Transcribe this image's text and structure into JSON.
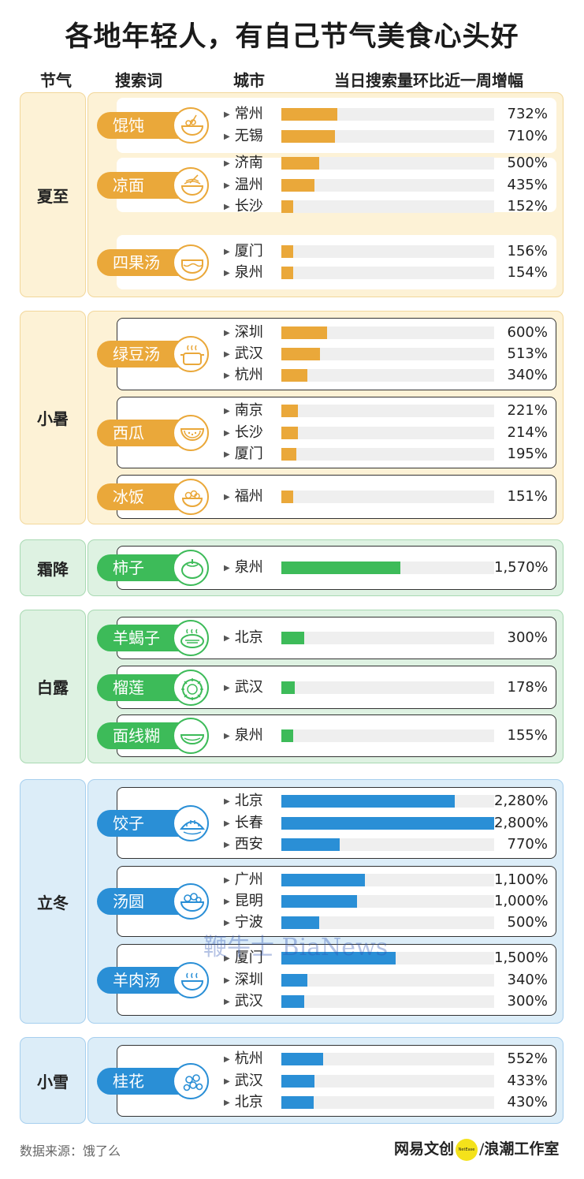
{
  "title": "各地年轻人，有自己节气美食心头好",
  "headers": {
    "jieqi": "节气",
    "search": "搜索词",
    "city": "城市",
    "growth": "当日搜索量环比近一周增幅"
  },
  "colors": {
    "yellow": "#eaa83a",
    "green": "#3dbb59",
    "blue": "#2a8fd6"
  },
  "chart_data": {
    "type": "bar",
    "title": "各地年轻人，有自己节气美食心头好",
    "ylabel": "当日搜索量环比近一周增幅",
    "unit": "%",
    "xlim": [
      0,
      2800
    ],
    "groups": [
      {
        "solar_term": "夏至",
        "color": "yellow",
        "foods": [
          {
            "name": "馄饨",
            "icon": "wonton-bowl-icon",
            "outlined": false,
            "cities": [
              {
                "city": "常州",
                "value": 732,
                "label": "732%"
              },
              {
                "city": "无锡",
                "value": 710,
                "label": "710%"
              }
            ]
          },
          {
            "name": "凉面",
            "icon": "noodle-bowl-icon",
            "outlined": false,
            "cities": [
              {
                "city": "济南",
                "value": 500,
                "label": "500%"
              },
              {
                "city": "温州",
                "value": 435,
                "label": "435%"
              },
              {
                "city": "长沙",
                "value": 152,
                "label": "152%"
              }
            ]
          },
          {
            "name": "四果汤",
            "icon": "fruit-soup-bowl-icon",
            "outlined": false,
            "cities": [
              {
                "city": "厦门",
                "value": 156,
                "label": "156%"
              },
              {
                "city": "泉州",
                "value": 154,
                "label": "154%"
              }
            ]
          }
        ]
      },
      {
        "solar_term": "小暑",
        "color": "yellow",
        "foods": [
          {
            "name": "绿豆汤",
            "icon": "soup-pot-icon",
            "outlined": true,
            "cities": [
              {
                "city": "深圳",
                "value": 600,
                "label": "600%"
              },
              {
                "city": "武汉",
                "value": 513,
                "label": "513%"
              },
              {
                "city": "杭州",
                "value": 340,
                "label": "340%"
              }
            ]
          },
          {
            "name": "西瓜",
            "icon": "watermelon-icon",
            "outlined": true,
            "cities": [
              {
                "city": "南京",
                "value": 221,
                "label": "221%"
              },
              {
                "city": "长沙",
                "value": 214,
                "label": "214%"
              },
              {
                "city": "厦门",
                "value": 195,
                "label": "195%"
              }
            ]
          },
          {
            "name": "冰饭",
            "icon": "ice-rice-bowl-icon",
            "outlined": true,
            "cities": [
              {
                "city": "福州",
                "value": 151,
                "label": "151%"
              }
            ]
          }
        ]
      },
      {
        "solar_term": "霜降",
        "color": "green",
        "foods": [
          {
            "name": "柿子",
            "icon": "persimmon-icon",
            "outlined": true,
            "cities": [
              {
                "city": "泉州",
                "value": 1570,
                "label": "1,570%"
              }
            ]
          }
        ]
      },
      {
        "solar_term": "白露",
        "color": "green",
        "foods": [
          {
            "name": "羊蝎子",
            "icon": "lamb-spine-pot-icon",
            "outlined": true,
            "cities": [
              {
                "city": "北京",
                "value": 300,
                "label": "300%"
              }
            ]
          },
          {
            "name": "榴莲",
            "icon": "durian-icon",
            "outlined": true,
            "cities": [
              {
                "city": "武汉",
                "value": 178,
                "label": "178%"
              }
            ]
          },
          {
            "name": "面线糊",
            "icon": "noodle-paste-bowl-icon",
            "outlined": true,
            "cities": [
              {
                "city": "泉州",
                "value": 155,
                "label": "155%"
              }
            ]
          }
        ]
      },
      {
        "solar_term": "立冬",
        "color": "blue",
        "foods": [
          {
            "name": "饺子",
            "icon": "dumpling-icon",
            "outlined": true,
            "cities": [
              {
                "city": "北京",
                "value": 2280,
                "label": "2,280%"
              },
              {
                "city": "长春",
                "value": 2800,
                "label": "2,800%"
              },
              {
                "city": "西安",
                "value": 770,
                "label": "770%"
              }
            ]
          },
          {
            "name": "汤圆",
            "icon": "tangyuan-bowl-icon",
            "outlined": true,
            "cities": [
              {
                "city": "广州",
                "value": 1100,
                "label": "1,100%"
              },
              {
                "city": "昆明",
                "value": 1000,
                "label": "1,000%"
              },
              {
                "city": "宁波",
                "value": 500,
                "label": "500%"
              }
            ]
          },
          {
            "name": "羊肉汤",
            "icon": "mutton-soup-bowl-icon",
            "outlined": true,
            "cities": [
              {
                "city": "厦门",
                "value": 1500,
                "label": "1,500%"
              },
              {
                "city": "深圳",
                "value": 340,
                "label": "340%"
              },
              {
                "city": "武汉",
                "value": 300,
                "label": "300%"
              }
            ]
          }
        ]
      },
      {
        "solar_term": "小雪",
        "color": "blue",
        "foods": [
          {
            "name": "桂花",
            "icon": "osmanthus-flower-icon",
            "outlined": true,
            "cities": [
              {
                "city": "杭州",
                "value": 552,
                "label": "552%"
              },
              {
                "city": "武汉",
                "value": 433,
                "label": "433%"
              },
              {
                "city": "北京",
                "value": 430,
                "label": "430%"
              }
            ]
          }
        ]
      }
    ]
  },
  "footer": {
    "source": "数据来源：饿了么",
    "watermark": "鞭牛士 BiaNews",
    "brand_netease": "网易文创",
    "brand_badge": "NetEase",
    "brand_sep": "/",
    "brand_studio": "浪潮工作室"
  }
}
